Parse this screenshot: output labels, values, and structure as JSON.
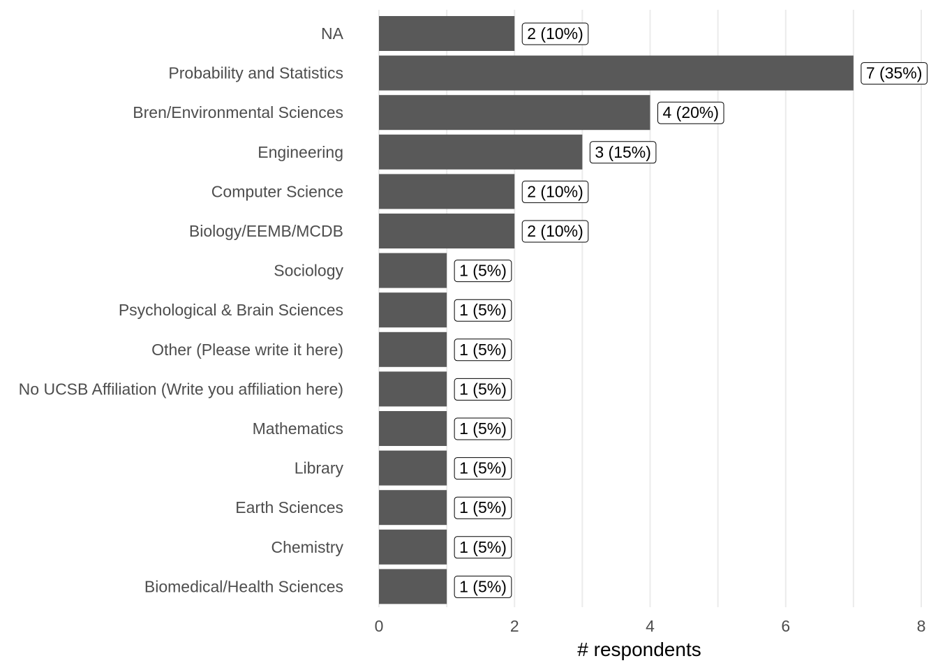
{
  "chart_data": {
    "type": "bar",
    "orientation": "horizontal",
    "categories": [
      "NA",
      "Probability and Statistics",
      "Bren/Environmental Sciences",
      "Engineering",
      "Computer Science",
      "Biology/EEMB/MCDB",
      "Sociology",
      "Psychological & Brain Sciences",
      "Other (Please write it here)",
      "No UCSB Affiliation (Write you affiliation here)",
      "Mathematics",
      "Library",
      "Earth Sciences",
      "Chemistry",
      "Biomedical/Health Sciences"
    ],
    "values": [
      2,
      7,
      4,
      3,
      2,
      2,
      1,
      1,
      1,
      1,
      1,
      1,
      1,
      1,
      1
    ],
    "data_labels": [
      "2 (10%)",
      "7 (35%)",
      "4 (20%)",
      "3 (15%)",
      "2 (10%)",
      "2 (10%)",
      "1 (5%)",
      "1 (5%)",
      "1 (5%)",
      "1 (5%)",
      "1 (5%)",
      "1 (5%)",
      "1 (5%)",
      "1 (5%)",
      "1 (5%)"
    ],
    "xlabel": "# respondents",
    "ylabel": "",
    "xlim": [
      0,
      8
    ],
    "xticks": [
      "0",
      "2",
      "4",
      "6",
      "8"
    ],
    "grid": true,
    "legend": "none",
    "bar_color": "#595959"
  }
}
